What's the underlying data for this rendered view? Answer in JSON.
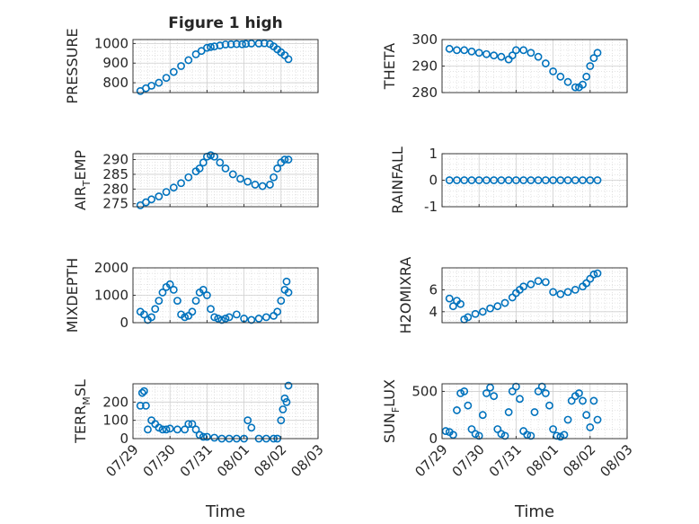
{
  "figure": {
    "title": "Figure 1 high",
    "xlabel": "Time",
    "time_ticks": [
      "07/29",
      "07/30",
      "07/31",
      "08/01",
      "08/02",
      "08/03"
    ],
    "marker_color": "#0072bd"
  },
  "chart_data": [
    {
      "type": "scatter",
      "ylabel": "PRESSURE",
      "ylim": [
        750,
        1020
      ],
      "yticks": [
        800,
        900,
        1000
      ],
      "xlim": [
        0,
        5
      ],
      "grid": true,
      "x": [
        0.2,
        0.35,
        0.5,
        0.7,
        0.9,
        1.1,
        1.3,
        1.5,
        1.7,
        1.85,
        2.0,
        2.1,
        2.2,
        2.35,
        2.5,
        2.65,
        2.8,
        2.95,
        3.05,
        3.2,
        3.4,
        3.55,
        3.7,
        3.8,
        3.9,
        4.0,
        4.1,
        4.2
      ],
      "y": [
        758,
        772,
        785,
        800,
        825,
        855,
        885,
        915,
        945,
        962,
        978,
        982,
        985,
        990,
        995,
        996,
        997,
        996,
        998,
        1000,
        1000,
        1001,
        997,
        985,
        970,
        955,
        940,
        920
      ]
    },
    {
      "type": "scatter",
      "ylabel": "THETA",
      "ylim": [
        280,
        300
      ],
      "yticks": [
        280,
        290,
        300
      ],
      "xlim": [
        0,
        5
      ],
      "grid": true,
      "x": [
        0.2,
        0.4,
        0.6,
        0.8,
        1.0,
        1.2,
        1.4,
        1.6,
        1.8,
        1.9,
        2.0,
        2.2,
        2.4,
        2.6,
        2.8,
        3.0,
        3.2,
        3.4,
        3.6,
        3.7,
        3.8,
        3.9,
        4.0,
        4.1,
        4.2
      ],
      "y": [
        296.5,
        296,
        296,
        295.5,
        295,
        294.5,
        294,
        293.5,
        292.5,
        294,
        296,
        296,
        295,
        293.5,
        291,
        288,
        286,
        284,
        282,
        282,
        283,
        286,
        290,
        293,
        295
      ]
    },
    {
      "type": "scatter",
      "ylabel": "AIR_TEMP",
      "ylim": [
        274,
        292
      ],
      "yticks": [
        275,
        280,
        285,
        290
      ],
      "xlim": [
        0,
        5
      ],
      "grid": true,
      "x": [
        0.2,
        0.35,
        0.5,
        0.7,
        0.9,
        1.1,
        1.3,
        1.5,
        1.7,
        1.8,
        1.9,
        2.0,
        2.1,
        2.2,
        2.35,
        2.5,
        2.7,
        2.9,
        3.1,
        3.3,
        3.5,
        3.7,
        3.8,
        3.9,
        4.0,
        4.1,
        4.2
      ],
      "y": [
        274.5,
        275.5,
        276.5,
        277.5,
        279,
        280.5,
        282,
        284,
        286,
        287,
        289,
        291,
        291.5,
        291,
        289,
        287,
        285,
        283.5,
        282.5,
        281.5,
        281,
        281.5,
        284,
        287,
        289,
        290,
        290
      ]
    },
    {
      "type": "scatter",
      "ylabel": "RAINFALL",
      "ylim": [
        -1,
        1
      ],
      "yticks": [
        -1,
        0,
        1
      ],
      "xlim": [
        0,
        5
      ],
      "grid": true,
      "x": [
        0.2,
        0.4,
        0.6,
        0.8,
        1.0,
        1.2,
        1.4,
        1.6,
        1.8,
        2.0,
        2.2,
        2.4,
        2.6,
        2.8,
        3.0,
        3.2,
        3.4,
        3.6,
        3.8,
        4.0,
        4.2
      ],
      "y": [
        0,
        0,
        0,
        0,
        0,
        0,
        0,
        0,
        0,
        0,
        0,
        0,
        0,
        0,
        0,
        0,
        0,
        0,
        0,
        0,
        0
      ]
    },
    {
      "type": "scatter",
      "ylabel": "MIXDEPTH",
      "ylim": [
        0,
        2000
      ],
      "yticks": [
        0,
        1000,
        2000
      ],
      "xlim": [
        0,
        5
      ],
      "grid": true,
      "x": [
        0.2,
        0.3,
        0.4,
        0.5,
        0.6,
        0.7,
        0.8,
        0.9,
        1.0,
        1.1,
        1.2,
        1.3,
        1.4,
        1.5,
        1.6,
        1.7,
        1.8,
        1.9,
        2.0,
        2.1,
        2.2,
        2.3,
        2.4,
        2.5,
        2.6,
        2.8,
        3.0,
        3.2,
        3.4,
        3.6,
        3.8,
        3.9,
        4.0,
        4.1,
        4.15,
        4.2
      ],
      "y": [
        400,
        300,
        100,
        200,
        500,
        800,
        1100,
        1300,
        1400,
        1200,
        800,
        300,
        200,
        250,
        400,
        800,
        1100,
        1200,
        1000,
        500,
        200,
        150,
        100,
        150,
        200,
        300,
        150,
        100,
        150,
        200,
        250,
        400,
        800,
        1200,
        1500,
        1100
      ]
    },
    {
      "type": "scatter",
      "ylabel": "H2OMIXRA",
      "ylim": [
        3,
        8
      ],
      "yticks": [
        4,
        6
      ],
      "xlim": [
        0,
        5
      ],
      "grid": true,
      "x": [
        0.2,
        0.3,
        0.4,
        0.5,
        0.6,
        0.7,
        0.9,
        1.1,
        1.3,
        1.5,
        1.7,
        1.9,
        2.0,
        2.1,
        2.2,
        2.4,
        2.6,
        2.8,
        3.0,
        3.2,
        3.4,
        3.6,
        3.8,
        3.9,
        4.0,
        4.1,
        4.2
      ],
      "y": [
        5.2,
        4.5,
        5.0,
        4.7,
        3.3,
        3.5,
        3.8,
        4.0,
        4.3,
        4.5,
        4.8,
        5.3,
        5.7,
        6.0,
        6.3,
        6.5,
        6.8,
        6.7,
        5.8,
        5.6,
        5.8,
        6.0,
        6.3,
        6.6,
        7.0,
        7.4,
        7.5
      ]
    },
    {
      "type": "scatter",
      "ylabel": "TERR_MSL",
      "ylim": [
        0,
        300
      ],
      "yticks": [
        0,
        100,
        200
      ],
      "xlim": [
        0,
        5
      ],
      "grid": true,
      "x": [
        0.2,
        0.25,
        0.3,
        0.35,
        0.4,
        0.5,
        0.6,
        0.7,
        0.8,
        0.9,
        1.0,
        1.2,
        1.4,
        1.5,
        1.6,
        1.7,
        1.8,
        1.9,
        2.0,
        2.2,
        2.4,
        2.6,
        2.8,
        3.0,
        3.1,
        3.2,
        3.4,
        3.6,
        3.8,
        3.9,
        4.0,
        4.05,
        4.1,
        4.15,
        4.2
      ],
      "y": [
        180,
        250,
        260,
        180,
        50,
        100,
        80,
        60,
        50,
        50,
        55,
        50,
        50,
        80,
        80,
        50,
        20,
        10,
        10,
        5,
        0,
        0,
        0,
        0,
        100,
        60,
        0,
        0,
        0,
        0,
        100,
        160,
        220,
        200,
        290
      ]
    },
    {
      "type": "scatter",
      "ylabel": "SUN_FLUX",
      "ylim": [
        0,
        580
      ],
      "yticks": [
        0,
        500
      ],
      "xlim": [
        0,
        5
      ],
      "grid": true,
      "x": [
        0.1,
        0.2,
        0.3,
        0.4,
        0.5,
        0.6,
        0.7,
        0.8,
        0.9,
        1.0,
        1.1,
        1.2,
        1.3,
        1.4,
        1.5,
        1.6,
        1.7,
        1.8,
        1.9,
        2.0,
        2.1,
        2.2,
        2.3,
        2.4,
        2.5,
        2.6,
        2.7,
        2.8,
        2.9,
        3.0,
        3.1,
        3.2,
        3.3,
        3.4,
        3.5,
        3.6,
        3.7,
        3.8,
        3.9,
        4.0,
        4.1,
        4.2
      ],
      "y": [
        80,
        70,
        40,
        300,
        480,
        500,
        350,
        100,
        50,
        30,
        250,
        480,
        540,
        450,
        100,
        50,
        30,
        280,
        500,
        550,
        420,
        80,
        40,
        30,
        280,
        500,
        550,
        480,
        350,
        100,
        30,
        20,
        40,
        200,
        400,
        450,
        480,
        400,
        250,
        120,
        400,
        200
      ]
    }
  ]
}
